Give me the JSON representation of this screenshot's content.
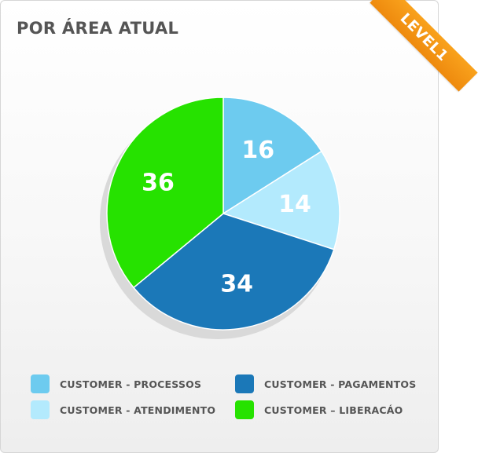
{
  "header": {
    "title": "POR ÁREA ATUAL",
    "badge": "LEVEL1"
  },
  "chart_data": {
    "type": "pie",
    "title": "POR ÁREA ATUAL",
    "categories": [
      "CUSTOMER - PROCESSOS",
      "CUSTOMER - ATENDIMENTO",
      "CUSTOMER - PAGAMENTOS",
      "CUSTOMER – LIBERACÁO"
    ],
    "values": [
      16,
      14,
      34,
      36
    ],
    "colors": [
      "#6dcbef",
      "#b3eafd",
      "#1b78b8",
      "#26e200"
    ],
    "legend_position": "bottom"
  }
}
